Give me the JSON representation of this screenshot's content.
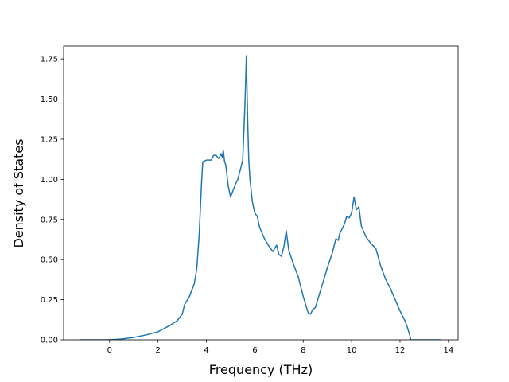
{
  "chart_data": {
    "type": "line",
    "title": "",
    "xlabel": "Frequency (THz)",
    "ylabel": "Density of States",
    "xlim": [
      -1.9,
      14.4
    ],
    "ylim": [
      0,
      1.83
    ],
    "grid": false,
    "legend": "none",
    "xticks": [
      0,
      2,
      4,
      6,
      8,
      10,
      12,
      14
    ],
    "xtick_labels": [
      "0",
      "2",
      "4",
      "6",
      "8",
      "10",
      "12",
      "14"
    ],
    "yticks": [
      0.0,
      0.25,
      0.5,
      0.75,
      1.0,
      1.25,
      1.5,
      1.75
    ],
    "ytick_labels": [
      "0.00",
      "0.25",
      "0.50",
      "0.75",
      "1.00",
      "1.25",
      "1.50",
      "1.75"
    ],
    "series": [
      {
        "color": "#1f77b4",
        "x": [
          -1.25,
          0.0,
          0.5,
          1.0,
          1.5,
          2.0,
          2.5,
          2.8,
          3.0,
          3.1,
          3.3,
          3.5,
          3.6,
          3.7,
          3.8,
          3.85,
          4.0,
          4.2,
          4.3,
          4.4,
          4.5,
          4.55,
          4.6,
          4.65,
          4.7,
          4.75,
          4.8,
          4.9,
          5.0,
          5.1,
          5.2,
          5.3,
          5.4,
          5.5,
          5.6,
          5.65,
          5.7,
          5.75,
          5.8,
          5.9,
          6.0,
          6.1,
          6.2,
          6.4,
          6.6,
          6.75,
          6.9,
          7.0,
          7.1,
          7.2,
          7.3,
          7.4,
          7.6,
          7.8,
          8.0,
          8.2,
          8.3,
          8.4,
          8.5,
          8.6,
          8.8,
          9.0,
          9.2,
          9.35,
          9.45,
          9.5,
          9.7,
          9.8,
          9.9,
          10.0,
          10.1,
          10.2,
          10.3,
          10.4,
          10.6,
          10.8,
          11.0,
          11.2,
          11.4,
          11.6,
          11.8,
          12.0,
          12.2,
          12.3,
          12.4,
          12.45,
          12.5,
          13.0,
          13.7
        ],
        "y": [
          0.0,
          0.0,
          0.005,
          0.015,
          0.03,
          0.05,
          0.09,
          0.12,
          0.16,
          0.22,
          0.27,
          0.35,
          0.44,
          0.65,
          0.98,
          1.11,
          1.12,
          1.12,
          1.15,
          1.15,
          1.13,
          1.14,
          1.16,
          1.14,
          1.18,
          1.11,
          1.09,
          0.96,
          0.89,
          0.93,
          0.97,
          1.0,
          1.06,
          1.12,
          1.5,
          1.77,
          1.4,
          1.12,
          1.0,
          0.86,
          0.79,
          0.77,
          0.7,
          0.63,
          0.58,
          0.55,
          0.59,
          0.53,
          0.52,
          0.58,
          0.68,
          0.56,
          0.47,
          0.39,
          0.27,
          0.17,
          0.16,
          0.19,
          0.2,
          0.25,
          0.35,
          0.45,
          0.54,
          0.63,
          0.62,
          0.66,
          0.72,
          0.77,
          0.76,
          0.79,
          0.89,
          0.81,
          0.83,
          0.71,
          0.64,
          0.6,
          0.57,
          0.46,
          0.38,
          0.32,
          0.25,
          0.18,
          0.12,
          0.08,
          0.03,
          0.0,
          0.0,
          0.0,
          0.0
        ]
      }
    ]
  }
}
